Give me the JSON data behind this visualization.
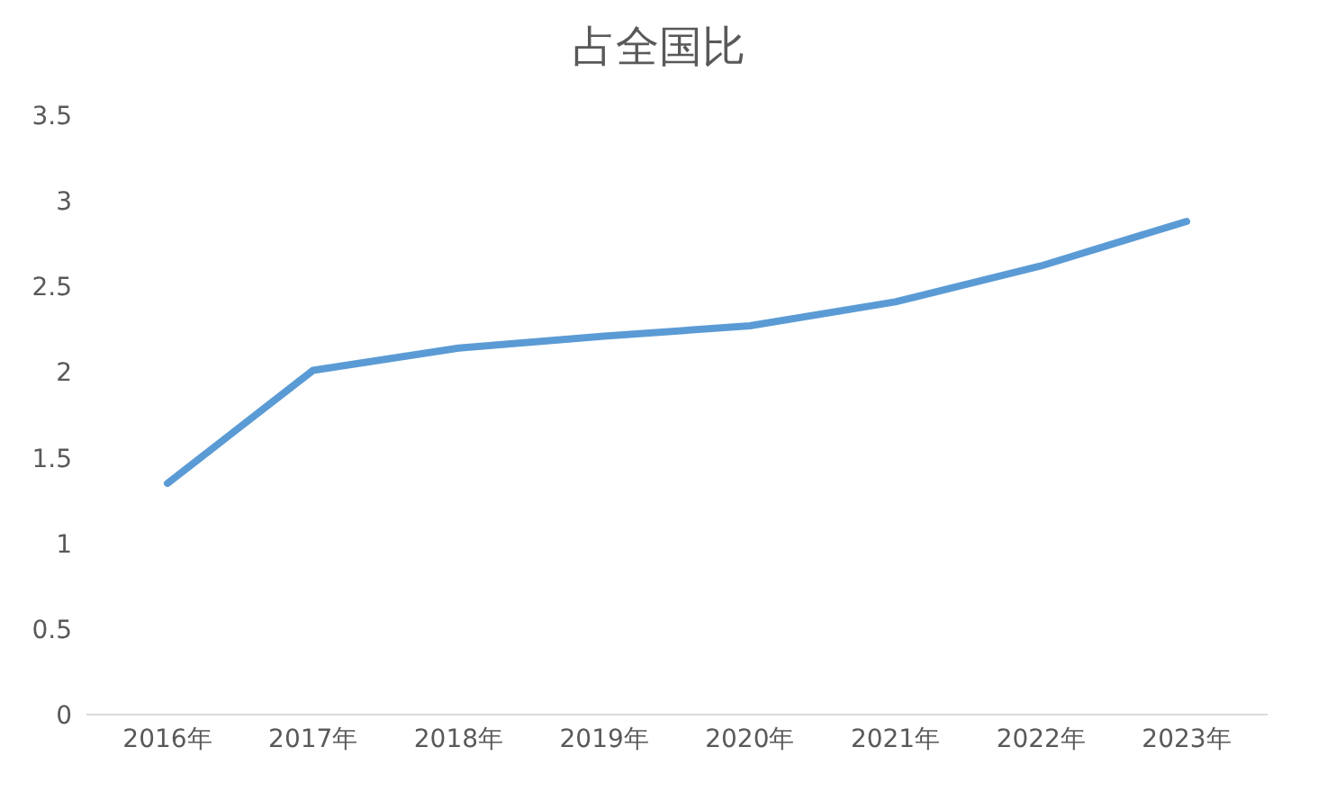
{
  "chart_data": {
    "type": "line",
    "title": "占全国比",
    "categories": [
      "2016年",
      "2017年",
      "2018年",
      "2019年",
      "2020年",
      "2021年",
      "2022年",
      "2023年"
    ],
    "series": [
      {
        "color": "#5b9bd5",
        "values": [
          1.35,
          2.01,
          2.14,
          2.21,
          2.27,
          2.41,
          2.62,
          2.88
        ]
      }
    ],
    "ylim": [
      0,
      3.5
    ],
    "yticks": [
      0,
      0.5,
      1,
      1.5,
      2,
      2.5,
      3,
      3.5
    ],
    "grid": false,
    "legend": false,
    "marker": "none",
    "line_style": "solid"
  }
}
